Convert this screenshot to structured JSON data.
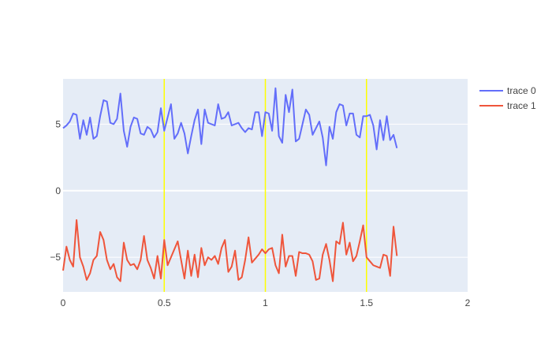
{
  "chart_data": {
    "type": "line",
    "xlim": [
      0,
      2
    ],
    "ylim": [
      -7.6,
      8.4
    ],
    "x_ticks": [
      {
        "value": 0,
        "label": "0"
      },
      {
        "value": 0.5,
        "label": "0.5"
      },
      {
        "value": 1,
        "label": "1"
      },
      {
        "value": 1.5,
        "label": "1.5"
      },
      {
        "value": 2,
        "label": "2"
      }
    ],
    "y_ticks": [
      {
        "value": -5,
        "label": "−5"
      },
      {
        "value": 0,
        "label": "0"
      },
      {
        "value": 5,
        "label": "5"
      }
    ],
    "vertical_lines": {
      "x": [
        0.5,
        1,
        1.5
      ],
      "color": "#ffff00"
    },
    "grid": true,
    "legend": {
      "placement": "top-right"
    },
    "series": [
      {
        "name": "trace 0",
        "color": "#636efa",
        "x_start": 0,
        "x_step": 0.01667,
        "values": [
          4.7,
          4.9,
          5.2,
          5.8,
          5.7,
          3.9,
          5.3,
          4.2,
          5.5,
          3.9,
          4.1,
          5.6,
          6.8,
          6.7,
          5.1,
          5.0,
          5.4,
          7.3,
          4.5,
          3.3,
          4.8,
          5.5,
          5.4,
          4.3,
          4.2,
          4.8,
          4.6,
          4.0,
          4.4,
          6.2,
          4.5,
          5.5,
          6.5,
          3.9,
          4.3,
          5.1,
          4.3,
          2.8,
          4.1,
          5.3,
          6.1,
          3.5,
          6.1,
          5.1,
          5.0,
          4.9,
          6.5,
          5.4,
          5.5,
          5.9,
          4.9,
          5.0,
          5.1,
          4.7,
          4.4,
          4.7,
          4.6,
          5.9,
          5.9,
          4.1,
          5.9,
          5.8,
          4.5,
          7.7,
          4.1,
          3.6,
          7.2,
          5.9,
          7.6,
          3.7,
          3.9,
          5.0,
          6.1,
          5.7,
          4.2,
          4.7,
          5.2,
          4.0,
          1.9,
          4.8,
          3.9,
          5.9,
          6.5,
          6.4,
          4.9,
          5.8,
          5.8,
          4.2,
          4.0,
          5.6,
          5.6,
          5.7,
          4.9,
          3.1,
          5.3,
          3.8,
          5.6,
          3.8,
          4.2,
          3.2
        ]
      },
      {
        "name": "trace 1",
        "color": "#ef553b",
        "x_start": 0,
        "x_step": 0.01667,
        "values": [
          -6.0,
          -4.2,
          -5.2,
          -5.7,
          -2.2,
          -5.0,
          -5.7,
          -6.7,
          -6.2,
          -5.2,
          -4.9,
          -3.1,
          -3.7,
          -5.2,
          -5.9,
          -5.5,
          -6.5,
          -6.8,
          -3.9,
          -5.2,
          -5.6,
          -5.5,
          -5.9,
          -5.2,
          -3.4,
          -5.2,
          -5.8,
          -6.6,
          -4.9,
          -6.6,
          -3.7,
          -5.6,
          -5.0,
          -4.4,
          -3.8,
          -5.2,
          -6.6,
          -4.5,
          -6.4,
          -4.8,
          -6.5,
          -4.3,
          -5.6,
          -5.0,
          -5.2,
          -4.9,
          -5.5,
          -4.3,
          -3.7,
          -6.1,
          -5.7,
          -4.5,
          -6.7,
          -6.5,
          -5.2,
          -3.5,
          -5.4,
          -5.1,
          -4.8,
          -4.4,
          -4.7,
          -4.4,
          -4.3,
          -5.6,
          -6.2,
          -3.3,
          -5.7,
          -4.9,
          -4.9,
          -6.4,
          -4.6,
          -4.7,
          -4.7,
          -4.8,
          -5.3,
          -6.7,
          -6.6,
          -4.8,
          -4.0,
          -5.2,
          -6.8,
          -3.8,
          -4.0,
          -2.4,
          -4.8,
          -3.9,
          -5.3,
          -4.9,
          -3.8,
          -2.6,
          -5.0,
          -5.3,
          -5.6,
          -5.7,
          -5.8,
          -4.8,
          -4.9,
          -6.4,
          -2.7,
          -4.9
        ]
      }
    ]
  }
}
